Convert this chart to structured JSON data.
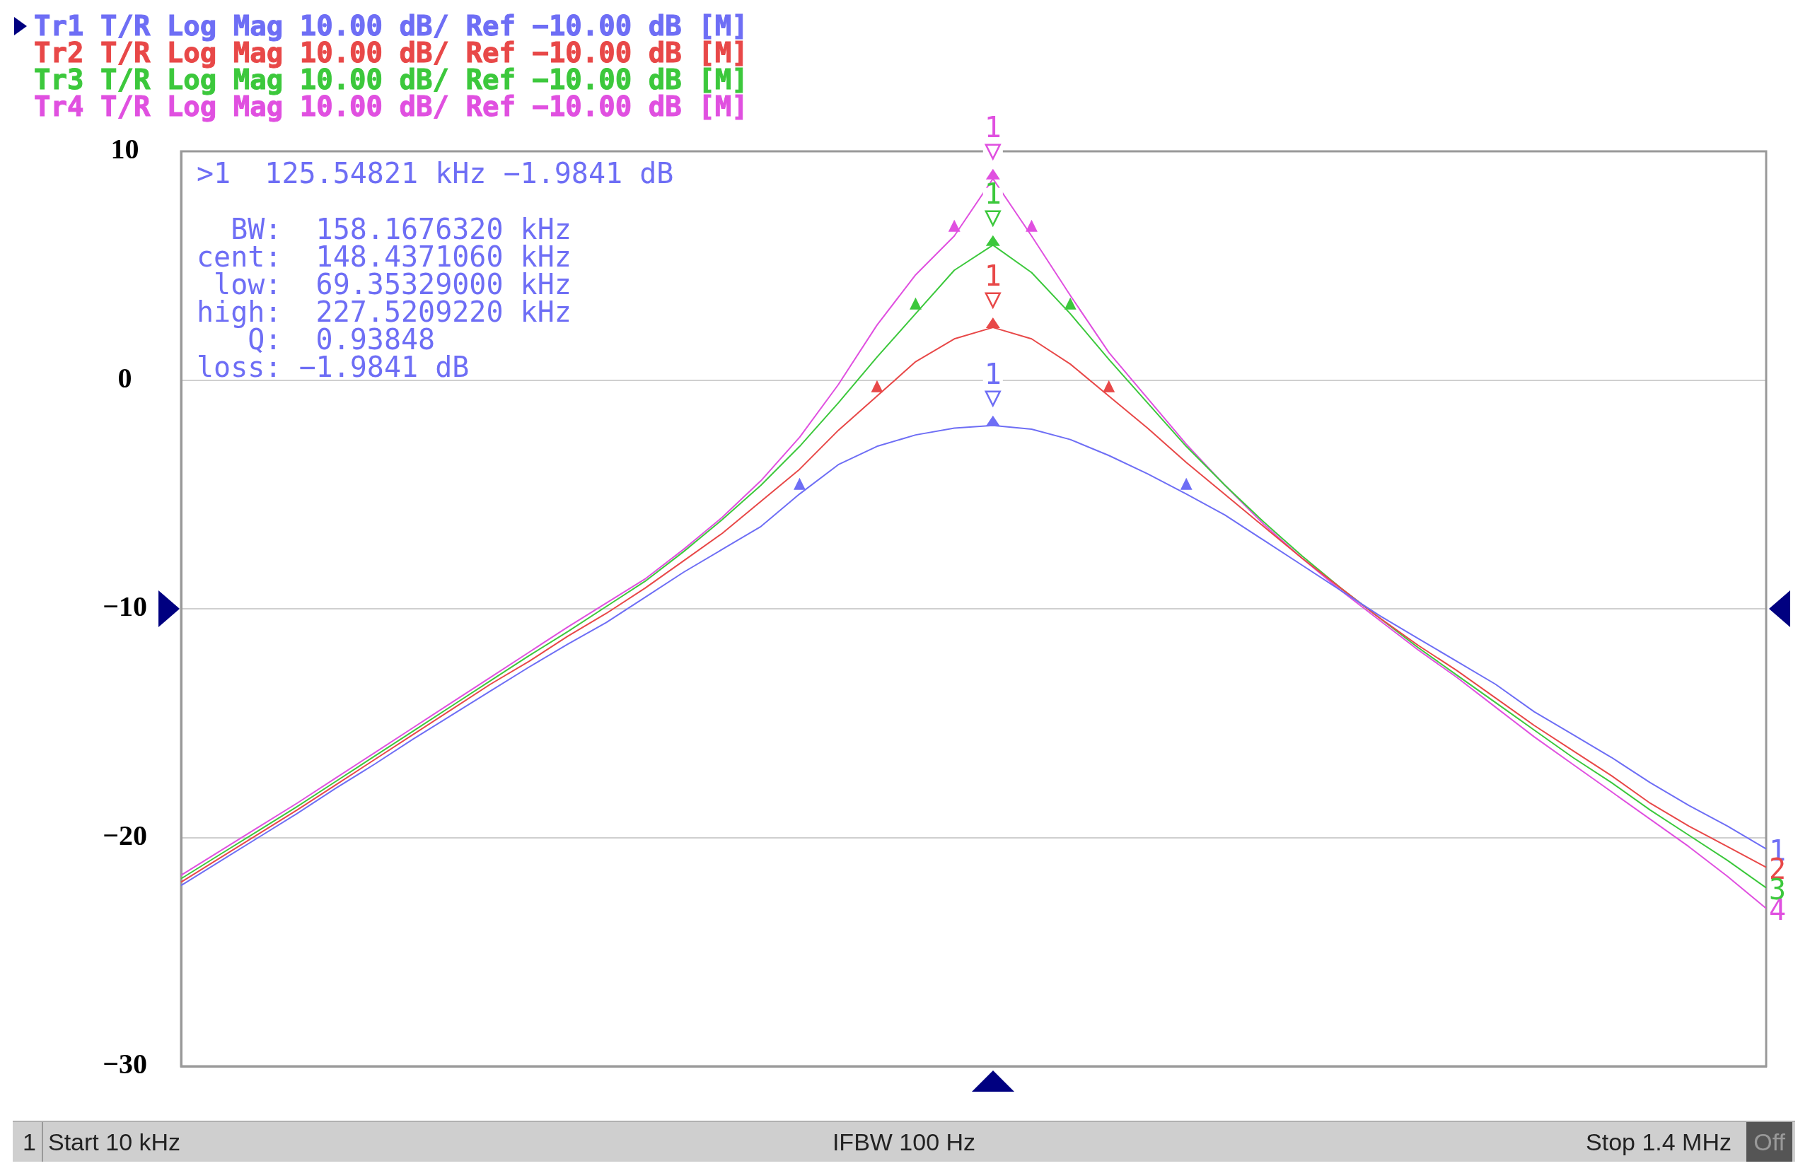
{
  "chart_data": {
    "type": "line",
    "grid": "y",
    "tick_labels": "y",
    "legend": "top left",
    "marker": "none",
    "categories": [
      null,
      null,
      null,
      null,
      null,
      null,
      null,
      null,
      null,
      null,
      null,
      null,
      null,
      null,
      null,
      null,
      null,
      null,
      null,
      null,
      null,
      null,
      null,
      null,
      null,
      null,
      null,
      null,
      null,
      null,
      null,
      null,
      null,
      null,
      null,
      null,
      null,
      null,
      null,
      null,
      null,
      null
    ],
    "ylim": [
      -30,
      10
    ],
    "yticks": [
      10,
      0,
      {
        "value": -10,
        "label": "−10"
      },
      {
        "value": -20,
        "label": "−20"
      },
      {
        "value": -30,
        "label": "−30"
      }
    ],
    "series": [
      {
        "name": "Tr1 T/R Log Mag 10.00 dB/ Ref −10.00 dB [M]",
        "color": "#6e6ef5",
        "values": [
          -22.1,
          -21.05,
          -20.0,
          -18.95,
          -17.85,
          -16.8,
          -15.7,
          -14.65,
          -13.6,
          -12.55,
          -11.55,
          -10.6,
          -9.5,
          -8.4,
          -7.4,
          -6.4,
          -4.98,
          -3.7,
          -2.9,
          -2.4,
          -2.1,
          -1.9841,
          -2.15,
          -2.6,
          -3.3,
          -4.1,
          -4.98,
          -5.9,
          -7.0,
          -8.1,
          -9.2,
          -10.3,
          -11.3,
          -12.3,
          -13.3,
          -14.5,
          -15.5,
          -16.5,
          -17.6,
          -18.6,
          -19.5,
          -20.5
        ]
      },
      {
        "name": "Tr2 T/R Log Mag 10.00 dB/ Ref −10.00 dB [M]",
        "color": "#e84848",
        "values": [
          -21.95,
          -20.9,
          -19.85,
          -18.8,
          -17.7,
          -16.6,
          -15.5,
          -14.4,
          -13.3,
          -12.3,
          -11.2,
          -10.2,
          -9.1,
          -7.9,
          -6.7,
          -5.3,
          -3.9,
          -2.2,
          -0.7,
          0.8,
          1.8,
          2.3,
          1.8,
          0.7,
          -0.7,
          -2.1,
          -3.6,
          -5.0,
          -6.4,
          -7.8,
          -9.1,
          -10.4,
          -11.6,
          -12.7,
          -13.9,
          -15.1,
          -16.2,
          -17.3,
          -18.5,
          -19.5,
          -20.4,
          -21.3
        ]
      },
      {
        "name": "Tr3 T/R Log Mag 10.00 dB/ Ref −10.00 dB [M]",
        "color": "#3cc83c",
        "values": [
          -21.8,
          -20.75,
          -19.7,
          -18.65,
          -17.55,
          -16.45,
          -15.35,
          -14.25,
          -13.15,
          -12.05,
          -11.0,
          -9.9,
          -8.8,
          -7.5,
          -6.1,
          -4.6,
          -2.9,
          -1.0,
          1.0,
          2.9,
          4.8,
          5.9,
          4.7,
          2.9,
          0.9,
          -1.0,
          -2.9,
          -4.6,
          -6.2,
          -7.7,
          -9.1,
          -10.4,
          -11.7,
          -12.9,
          -14.1,
          -15.3,
          -16.5,
          -17.6,
          -18.8,
          -19.9,
          -21.0,
          -22.2
        ]
      },
      {
        "name": "Tr4 T/R Log Mag 10.00 dB/ Ref −10.00 dB [M]",
        "color": "#e050e0",
        "values": [
          -21.65,
          -20.6,
          -19.55,
          -18.5,
          -17.4,
          -16.3,
          -15.2,
          -14.1,
          -13.0,
          -11.9,
          -10.8,
          -9.75,
          -8.7,
          -7.4,
          -6.0,
          -4.4,
          -2.5,
          -0.2,
          2.4,
          4.6,
          6.3,
          8.8,
          6.3,
          3.7,
          1.2,
          -0.8,
          -2.8,
          -4.6,
          -6.3,
          -7.8,
          -9.2,
          -10.5,
          -11.8,
          -13.0,
          -14.3,
          -15.6,
          -16.8,
          -18.0,
          -19.2,
          -20.4,
          -21.7,
          -23.1
        ]
      }
    ],
    "annotations": [
      ">1  125.54821 kHz −1.9841 dB",
      "  BW:  158.1676320 kHz",
      "cent:  148.4371060 kHz",
      " low:  69.35329000 kHz",
      "high:  227.5209220 kHz",
      "   Q:  0.93848",
      "loss: −1.9841 dB",
      "1",
      "Start 10 kHz",
      "IFBW 100 Hz",
      "Stop 1.4 MHz",
      "Off",
      "1",
      "2",
      "3",
      "4",
      {
        "text": "▽",
        "y": -1.9841
      },
      {
        "text": "1",
        "y": -1.9841
      },
      {
        "text": "▽",
        "y": 2.3
      },
      {
        "text": "1",
        "y": 2.3
      },
      {
        "text": "▽",
        "y": 5.9
      },
      {
        "text": "1",
        "y": 5.9
      },
      {
        "text": "▽",
        "y": 8.8
      },
      {
        "text": "1",
        "y": 8.8
      },
      {
        "text": "▲",
        "y": -4.98
      },
      {
        "text": "▲",
        "y": -4.98
      },
      {
        "text": "▲",
        "y": -0.7
      },
      {
        "text": "▲",
        "y": -0.7
      },
      {
        "text": "▲",
        "y": 2.9
      },
      {
        "text": "▲",
        "y": 2.9
      },
      {
        "text": "▲",
        "y": 6.3
      },
      {
        "text": "▲",
        "y": 6.3
      }
    ]
  }
}
